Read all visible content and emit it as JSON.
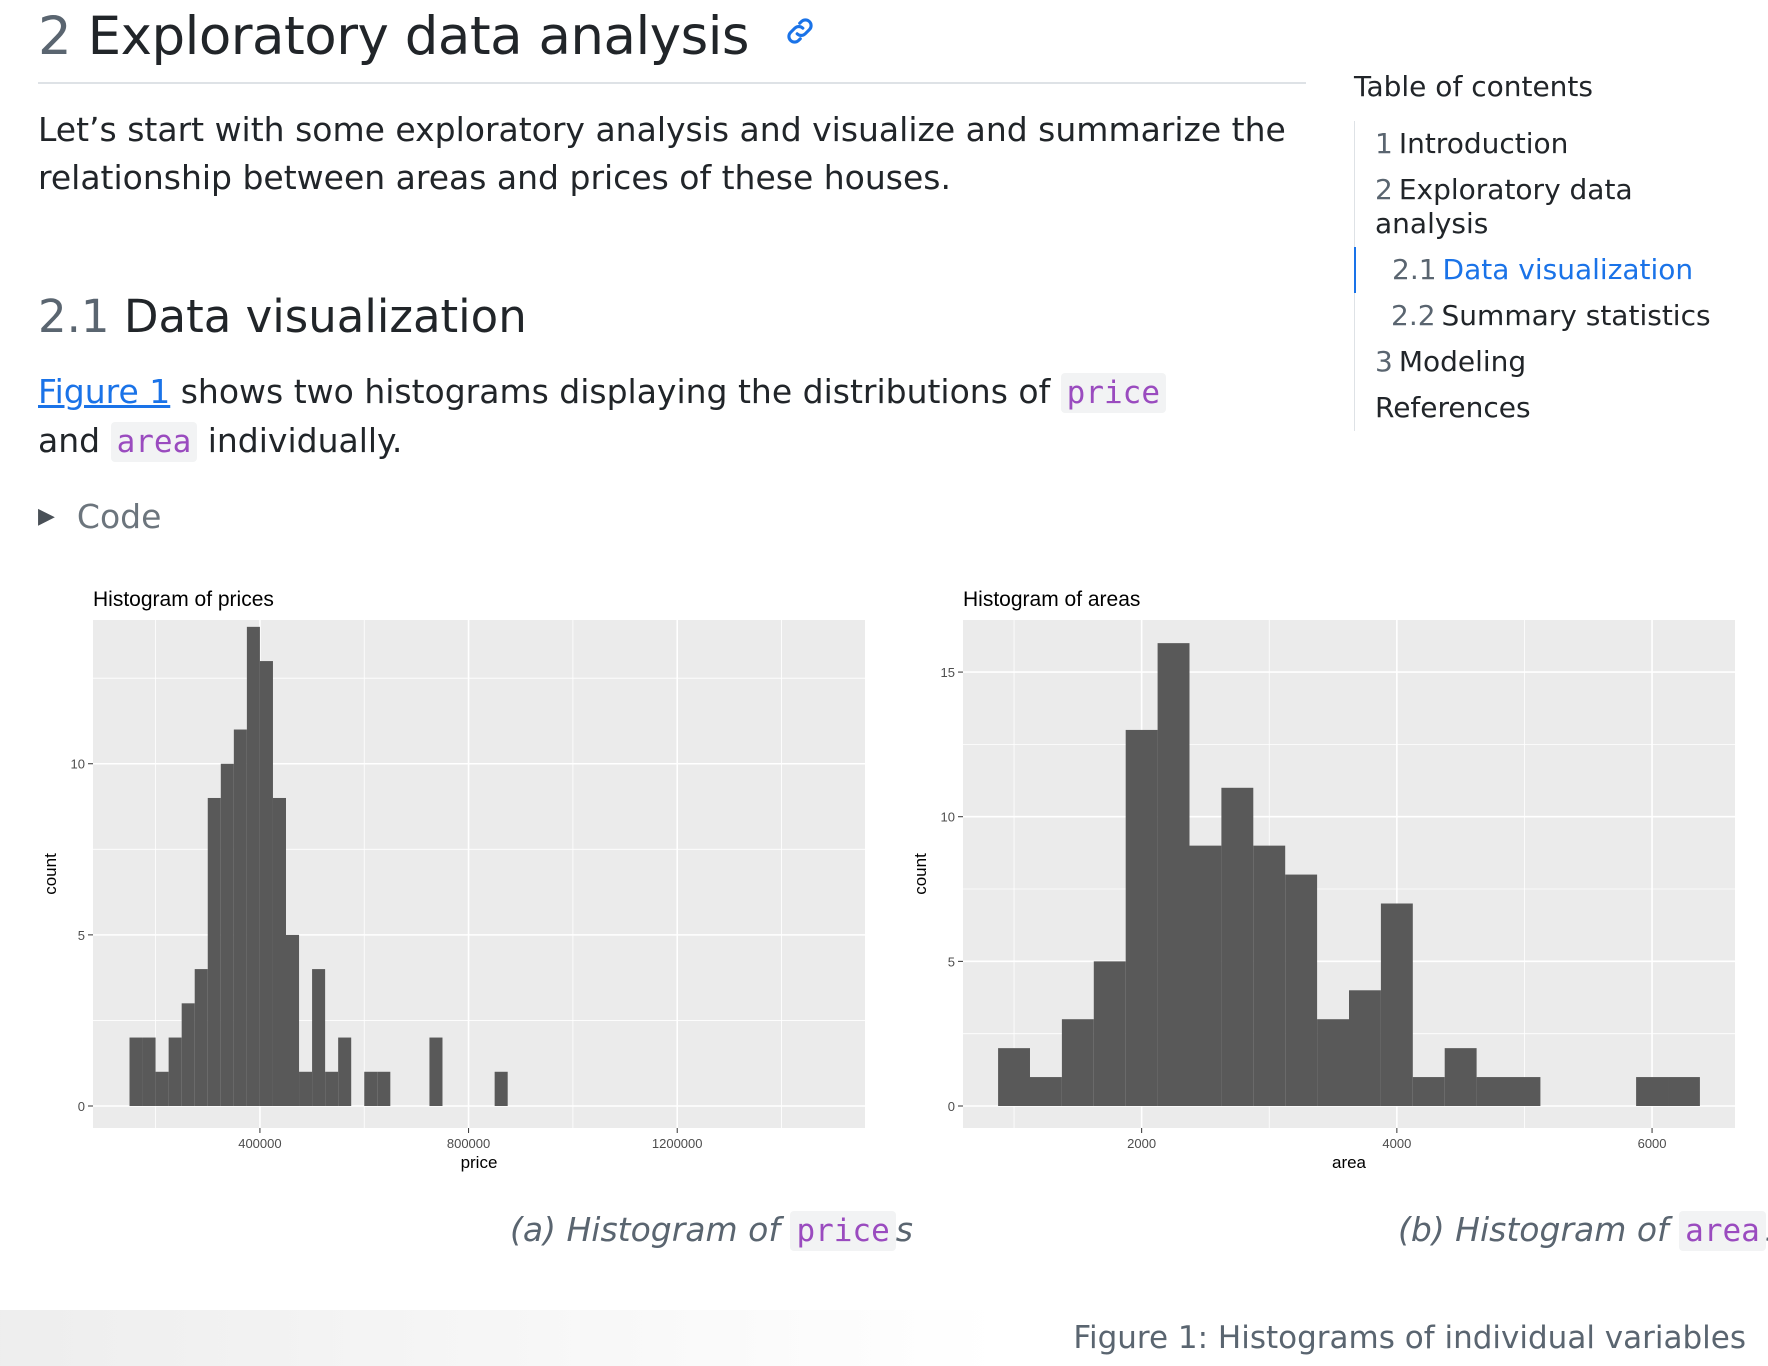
{
  "header": {
    "section_number": "2",
    "title": "Exploratory data analysis",
    "anchor_icon": "link-icon"
  },
  "intro_text": "Let’s start with some exploratory analysis and visualize and summarize the relationship between areas and prices of these houses.",
  "subsection": {
    "number": "2.1",
    "title": "Data visualization"
  },
  "paragraph": {
    "link_text": "Figure 1",
    "text_1": " shows two histograms displaying the distributions of ",
    "code_1": "price",
    "text_2": " and ",
    "code_2": "area",
    "text_3": " individually."
  },
  "code_fold": {
    "icon": "triangle-right-icon",
    "label": "Code"
  },
  "toc": {
    "title": "Table of contents",
    "items": [
      {
        "num": "1",
        "label": "Introduction",
        "level": 1,
        "active": false
      },
      {
        "num": "2",
        "label": "Exploratory data analysis",
        "level": 1,
        "active": false
      },
      {
        "num": "2.1",
        "label": "Data visualization",
        "level": 2,
        "active": true
      },
      {
        "num": "2.2",
        "label": "Summary statistics",
        "level": 2,
        "active": false
      },
      {
        "num": "3",
        "label": "Modeling",
        "level": 1,
        "active": false
      },
      {
        "num": "",
        "label": "References",
        "level": 1,
        "active": false
      }
    ]
  },
  "colors": {
    "panel_bg": "#EBEBEB",
    "grid": "#FFFFFF",
    "bar": "#595959",
    "link": "#1A73E8",
    "code": "#9A4BBF"
  },
  "subcaptions": {
    "a_prefix": "(a) Histogram of ",
    "a_code": "price",
    "a_suffix": "s",
    "b_prefix": "(b) Histogram of ",
    "b_code": "area",
    "b_suffix": "s"
  },
  "figure_caption": "Figure 1: Histograms of individual variables",
  "chart_data": [
    {
      "type": "bar",
      "title": "Histogram of prices",
      "xlabel": "price",
      "ylabel": "count",
      "bin_width": 25000,
      "xlim": [
        80000,
        1560000
      ],
      "ylim": [
        0,
        14.2
      ],
      "x_ticks": [
        400000,
        800000,
        1200000
      ],
      "x_tick_labels": [
        "400000",
        "800000",
        "1200000"
      ],
      "y_ticks": [
        0,
        5,
        10
      ],
      "y_tick_labels": [
        "0",
        "5",
        "10"
      ],
      "grid": true,
      "bins": [
        {
          "x0": 150000,
          "count": 2
        },
        {
          "x0": 175000,
          "count": 2
        },
        {
          "x0": 200000,
          "count": 1
        },
        {
          "x0": 225000,
          "count": 2
        },
        {
          "x0": 250000,
          "count": 3
        },
        {
          "x0": 275000,
          "count": 4
        },
        {
          "x0": 300000,
          "count": 9
        },
        {
          "x0": 325000,
          "count": 10
        },
        {
          "x0": 350000,
          "count": 11
        },
        {
          "x0": 375000,
          "count": 14
        },
        {
          "x0": 400000,
          "count": 13
        },
        {
          "x0": 425000,
          "count": 9
        },
        {
          "x0": 450000,
          "count": 5
        },
        {
          "x0": 475000,
          "count": 1
        },
        {
          "x0": 500000,
          "count": 4
        },
        {
          "x0": 525000,
          "count": 1
        },
        {
          "x0": 550000,
          "count": 2
        },
        {
          "x0": 600000,
          "count": 1
        },
        {
          "x0": 625000,
          "count": 1
        },
        {
          "x0": 725000,
          "count": 2
        },
        {
          "x0": 850000,
          "count": 1
        }
      ]
    },
    {
      "type": "bar",
      "title": "Histogram of areas",
      "xlabel": "area",
      "ylabel": "count",
      "bin_width": 250,
      "xlim": [
        600,
        6650
      ],
      "ylim": [
        0,
        16.8
      ],
      "x_ticks": [
        2000,
        4000,
        6000
      ],
      "x_tick_labels": [
        "2000",
        "4000",
        "6000"
      ],
      "y_ticks": [
        0,
        5,
        10,
        15
      ],
      "y_tick_labels": [
        "0",
        "5",
        "10",
        "15"
      ],
      "grid": true,
      "bins": [
        {
          "x0": 875,
          "count": 2
        },
        {
          "x0": 1125,
          "count": 1
        },
        {
          "x0": 1375,
          "count": 3
        },
        {
          "x0": 1625,
          "count": 5
        },
        {
          "x0": 1875,
          "count": 13
        },
        {
          "x0": 2125,
          "count": 16
        },
        {
          "x0": 2375,
          "count": 9
        },
        {
          "x0": 2625,
          "count": 11
        },
        {
          "x0": 2875,
          "count": 9
        },
        {
          "x0": 3125,
          "count": 8
        },
        {
          "x0": 3375,
          "count": 3
        },
        {
          "x0": 3625,
          "count": 4
        },
        {
          "x0": 3875,
          "count": 7
        },
        {
          "x0": 4125,
          "count": 1
        },
        {
          "x0": 4375,
          "count": 2
        },
        {
          "x0": 4625,
          "count": 1
        },
        {
          "x0": 4875,
          "count": 1
        },
        {
          "x0": 5875,
          "count": 1
        },
        {
          "x0": 6125,
          "count": 1
        }
      ]
    }
  ]
}
